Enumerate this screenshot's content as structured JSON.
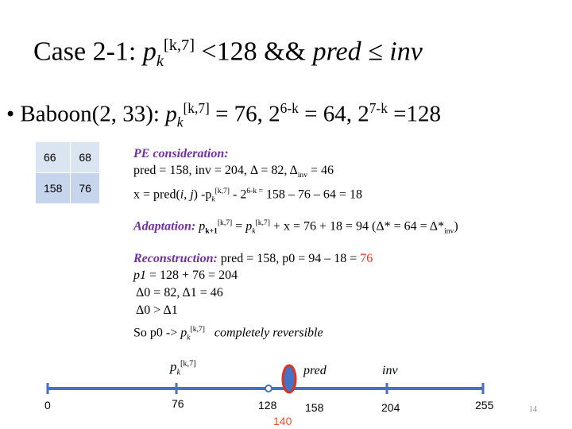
{
  "title": {
    "prefix": "Case 2-1: ",
    "p": "p",
    "sub": "k",
    "sup": "[k,7]",
    "middle": " <128 && ",
    "condition": "pred ≤ inv"
  },
  "bullet": {
    "marker": "•",
    "prefix": "Baboon(2, 33): ",
    "p": "p",
    "sub": "k",
    "sup": "[k,7]",
    "eq1": " = 76, 2",
    "exp1": "6-k",
    "eq2": " = 64, 2",
    "exp2": "7-k",
    "eq3": " =128"
  },
  "table": {
    "rows": [
      [
        "66",
        "68"
      ],
      [
        "158",
        "76"
      ]
    ]
  },
  "pe": {
    "heading": "PE consideration:",
    "line1": "pred = 158, inv = 204, Δ = 82, Δ",
    "line1_sub": "inv",
    "line1_end": " = 46",
    "line2_start": "x = pred(",
    "line2_args": "i, j",
    "line2_mid": ") -p",
    "sub": "k",
    "sup": "[k,7]",
    "line2_minus": " - 2",
    "exp": "6-k =",
    "line2_end": " 158 – 76 – 64 = 18"
  },
  "adaptation": {
    "heading": "Adaptation:",
    "p": "p",
    "sub1": "k+1",
    "sup": "[k,7]",
    "eq": " = ",
    "sub2": "k",
    "rest": " + x = 76 + 18 = 94   (Δ* = 64 = Δ*",
    "inv_sub": "inv",
    "close": ")"
  },
  "reconstruction": {
    "heading": "Reconstruction:",
    "line1": "pred = 158, p0 = 94 – 18 = ",
    "line1_red": "76",
    "p1": "p1",
    "line2": " = 128 + 76 = 204",
    "line3": "Δ0 = 82, Δ1 = 46",
    "line4": "Δ0 > Δ1",
    "line5": "So  p0 -> ",
    "p": "p",
    "sub": "k",
    "sup": "[k,7]",
    "note": "completely reversible"
  },
  "numberline": {
    "p": "p",
    "sub": "k",
    "sup": "[k,7]",
    "pred": "pred",
    "inv": "inv",
    "ticks": [
      "0",
      "76",
      "128",
      "158",
      "204",
      "255"
    ],
    "highlight": "140"
  },
  "page_number": "14"
}
